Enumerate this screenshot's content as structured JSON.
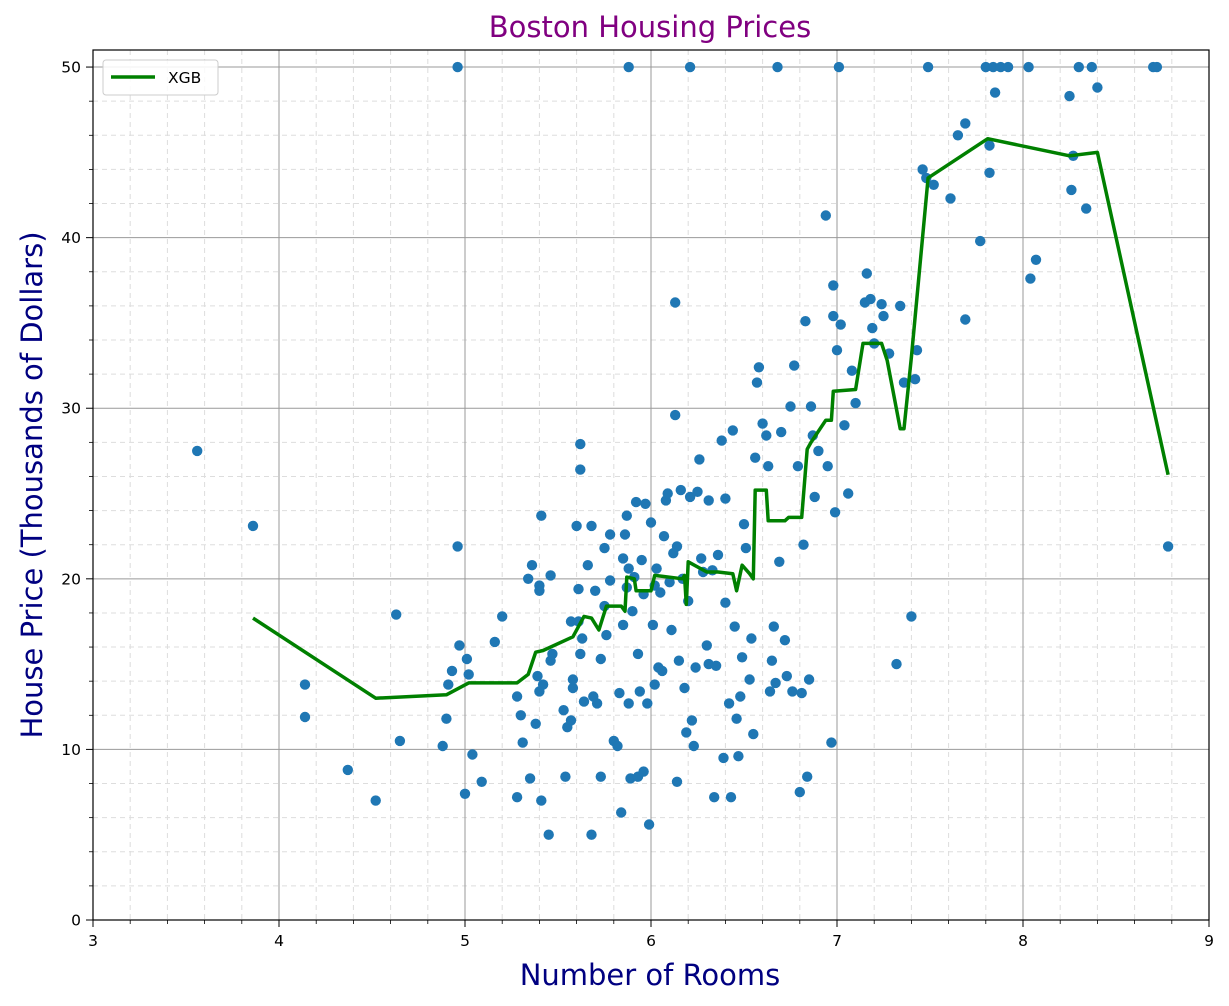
{
  "chart_data": {
    "type": "scatter",
    "title": "Boston Housing Prices",
    "xlabel": "Number of Rooms",
    "ylabel": "House Price (Thousands of Dollars)",
    "xlim": [
      3,
      9
    ],
    "ylim": [
      0,
      51
    ],
    "xticks": [
      3,
      4,
      5,
      6,
      7,
      8,
      9
    ],
    "yticks": [
      0,
      10,
      20,
      30,
      40,
      50
    ],
    "grid": {
      "major": true,
      "minor": true
    },
    "legend_position": "top-left",
    "colors": {
      "points": "#1f77b4",
      "line": "#008000",
      "title": "#800080",
      "axis_label": "#000080"
    },
    "series": [
      {
        "type": "scatter",
        "points": [
          [
            3.56,
            27.5
          ],
          [
            3.86,
            23.1
          ],
          [
            4.14,
            13.8
          ],
          [
            4.14,
            11.9
          ],
          [
            4.37,
            8.8
          ],
          [
            4.52,
            7.0
          ],
          [
            4.63,
            17.9
          ],
          [
            4.65,
            10.5
          ],
          [
            4.88,
            10.2
          ],
          [
            4.9,
            11.8
          ],
          [
            4.91,
            13.8
          ],
          [
            4.93,
            14.6
          ],
          [
            4.96,
            50.0
          ],
          [
            4.96,
            21.9
          ],
          [
            4.97,
            16.1
          ],
          [
            5.0,
            7.4
          ],
          [
            5.01,
            15.3
          ],
          [
            5.02,
            14.4
          ],
          [
            5.04,
            9.7
          ],
          [
            5.09,
            8.1
          ],
          [
            5.16,
            16.3
          ],
          [
            5.2,
            17.8
          ],
          [
            5.28,
            13.1
          ],
          [
            5.28,
            7.2
          ],
          [
            5.3,
            12.0
          ],
          [
            5.31,
            10.4
          ],
          [
            5.34,
            20.0
          ],
          [
            5.35,
            8.3
          ],
          [
            5.36,
            20.8
          ],
          [
            5.38,
            11.5
          ],
          [
            5.39,
            14.3
          ],
          [
            5.4,
            13.4
          ],
          [
            5.4,
            19.6
          ],
          [
            5.4,
            19.3
          ],
          [
            5.41,
            7.0
          ],
          [
            5.41,
            23.7
          ],
          [
            5.42,
            13.8
          ],
          [
            5.45,
            5.0
          ],
          [
            5.46,
            15.2
          ],
          [
            5.46,
            20.2
          ],
          [
            5.47,
            15.6
          ],
          [
            5.53,
            12.3
          ],
          [
            5.54,
            8.4
          ],
          [
            5.55,
            11.3
          ],
          [
            5.57,
            11.7
          ],
          [
            5.57,
            17.5
          ],
          [
            5.58,
            13.6
          ],
          [
            5.58,
            14.1
          ],
          [
            5.6,
            23.1
          ],
          [
            5.61,
            17.5
          ],
          [
            5.61,
            19.4
          ],
          [
            5.62,
            27.9
          ],
          [
            5.62,
            26.4
          ],
          [
            5.62,
            15.6
          ],
          [
            5.63,
            16.5
          ],
          [
            5.64,
            12.8
          ],
          [
            5.66,
            20.8
          ],
          [
            5.68,
            5.0
          ],
          [
            5.68,
            23.1
          ],
          [
            5.69,
            13.1
          ],
          [
            5.7,
            19.3
          ],
          [
            5.71,
            12.7
          ],
          [
            5.73,
            15.3
          ],
          [
            5.73,
            8.4
          ],
          [
            5.75,
            18.4
          ],
          [
            5.75,
            21.8
          ],
          [
            5.76,
            16.7
          ],
          [
            5.78,
            19.9
          ],
          [
            5.78,
            22.6
          ],
          [
            5.8,
            10.5
          ],
          [
            5.82,
            10.2
          ],
          [
            5.83,
            13.3
          ],
          [
            5.84,
            6.3
          ],
          [
            5.85,
            21.2
          ],
          [
            5.85,
            17.3
          ],
          [
            5.86,
            22.6
          ],
          [
            5.87,
            23.7
          ],
          [
            5.87,
            19.5
          ],
          [
            5.88,
            50.0
          ],
          [
            5.88,
            20.6
          ],
          [
            5.88,
            12.7
          ],
          [
            5.89,
            8.3
          ],
          [
            5.9,
            18.1
          ],
          [
            5.91,
            20.1
          ],
          [
            5.92,
            24.5
          ],
          [
            5.93,
            15.6
          ],
          [
            5.93,
            8.4
          ],
          [
            5.94,
            13.4
          ],
          [
            5.95,
            21.1
          ],
          [
            5.96,
            19.1
          ],
          [
            5.96,
            8.7
          ],
          [
            5.97,
            24.4
          ],
          [
            5.98,
            12.7
          ],
          [
            5.99,
            5.6
          ],
          [
            6.0,
            23.3
          ],
          [
            6.01,
            17.3
          ],
          [
            6.02,
            19.6
          ],
          [
            6.02,
            13.8
          ],
          [
            6.03,
            20.6
          ],
          [
            6.04,
            14.8
          ],
          [
            6.05,
            19.2
          ],
          [
            6.06,
            14.6
          ],
          [
            6.07,
            22.5
          ],
          [
            6.08,
            24.6
          ],
          [
            6.09,
            25.0
          ],
          [
            6.1,
            19.8
          ],
          [
            6.11,
            17.0
          ],
          [
            6.12,
            21.5
          ],
          [
            6.13,
            36.2
          ],
          [
            6.13,
            29.6
          ],
          [
            6.14,
            8.1
          ],
          [
            6.14,
            21.9
          ],
          [
            6.15,
            15.2
          ],
          [
            6.16,
            25.2
          ],
          [
            6.17,
            20.0
          ],
          [
            6.18,
            13.6
          ],
          [
            6.19,
            11.0
          ],
          [
            6.2,
            18.7
          ],
          [
            6.21,
            50.0
          ],
          [
            6.21,
            24.8
          ],
          [
            6.22,
            11.7
          ],
          [
            6.23,
            10.2
          ],
          [
            6.24,
            14.8
          ],
          [
            6.25,
            25.1
          ],
          [
            6.26,
            27.0
          ],
          [
            6.27,
            21.2
          ],
          [
            6.28,
            20.4
          ],
          [
            6.3,
            16.1
          ],
          [
            6.31,
            15.0
          ],
          [
            6.31,
            24.6
          ],
          [
            6.33,
            20.5
          ],
          [
            6.34,
            7.2
          ],
          [
            6.35,
            14.9
          ],
          [
            6.36,
            21.4
          ],
          [
            6.38,
            28.1
          ],
          [
            6.39,
            9.5
          ],
          [
            6.4,
            18.6
          ],
          [
            6.4,
            24.7
          ],
          [
            6.42,
            12.7
          ],
          [
            6.43,
            7.2
          ],
          [
            6.44,
            28.7
          ],
          [
            6.45,
            17.2
          ],
          [
            6.46,
            11.8
          ],
          [
            6.47,
            9.6
          ],
          [
            6.48,
            13.1
          ],
          [
            6.49,
            15.4
          ],
          [
            6.5,
            23.2
          ],
          [
            6.51,
            21.8
          ],
          [
            6.53,
            14.1
          ],
          [
            6.54,
            16.5
          ],
          [
            6.55,
            10.9
          ],
          [
            6.56,
            27.1
          ],
          [
            6.57,
            31.5
          ],
          [
            6.58,
            32.4
          ],
          [
            6.6,
            29.1
          ],
          [
            6.62,
            28.4
          ],
          [
            6.63,
            26.6
          ],
          [
            6.64,
            13.4
          ],
          [
            6.65,
            15.2
          ],
          [
            6.66,
            17.2
          ],
          [
            6.67,
            13.9
          ],
          [
            6.68,
            50.0
          ],
          [
            6.69,
            21.0
          ],
          [
            6.7,
            28.6
          ],
          [
            6.72,
            16.4
          ],
          [
            6.73,
            14.3
          ],
          [
            6.75,
            30.1
          ],
          [
            6.76,
            13.4
          ],
          [
            6.77,
            32.5
          ],
          [
            6.79,
            26.6
          ],
          [
            6.8,
            7.5
          ],
          [
            6.81,
            13.3
          ],
          [
            6.82,
            22.0
          ],
          [
            6.83,
            35.1
          ],
          [
            6.84,
            8.4
          ],
          [
            6.85,
            14.1
          ],
          [
            6.86,
            30.1
          ],
          [
            6.87,
            28.4
          ],
          [
            6.88,
            24.8
          ],
          [
            6.9,
            27.5
          ],
          [
            6.94,
            41.3
          ],
          [
            6.95,
            26.6
          ],
          [
            6.97,
            10.4
          ],
          [
            6.98,
            35.4
          ],
          [
            6.98,
            37.2
          ],
          [
            6.99,
            23.9
          ],
          [
            7.0,
            33.4
          ],
          [
            7.01,
            50.0
          ],
          [
            7.02,
            34.9
          ],
          [
            7.04,
            29.0
          ],
          [
            7.06,
            25.0
          ],
          [
            7.08,
            32.2
          ],
          [
            7.1,
            30.3
          ],
          [
            7.15,
            36.2
          ],
          [
            7.16,
            37.9
          ],
          [
            7.18,
            36.4
          ],
          [
            7.19,
            34.7
          ],
          [
            7.2,
            33.8
          ],
          [
            7.24,
            36.1
          ],
          [
            7.25,
            35.4
          ],
          [
            7.28,
            33.2
          ],
          [
            7.32,
            15.0
          ],
          [
            7.34,
            36.0
          ],
          [
            7.36,
            31.5
          ],
          [
            7.4,
            17.8
          ],
          [
            7.42,
            31.7
          ],
          [
            7.43,
            33.4
          ],
          [
            7.46,
            44.0
          ],
          [
            7.48,
            43.5
          ],
          [
            7.49,
            50.0
          ],
          [
            7.52,
            43.1
          ],
          [
            7.61,
            42.3
          ],
          [
            7.65,
            46.0
          ],
          [
            7.69,
            46.7
          ],
          [
            7.69,
            35.2
          ],
          [
            7.77,
            39.8
          ],
          [
            7.8,
            50.0
          ],
          [
            7.82,
            45.4
          ],
          [
            7.82,
            43.8
          ],
          [
            7.84,
            50.0
          ],
          [
            7.85,
            48.5
          ],
          [
            7.88,
            50.0
          ],
          [
            7.92,
            50.0
          ],
          [
            8.03,
            50.0
          ],
          [
            8.04,
            37.6
          ],
          [
            8.07,
            38.7
          ],
          [
            8.25,
            48.3
          ],
          [
            8.26,
            42.8
          ],
          [
            8.27,
            44.8
          ],
          [
            8.3,
            50.0
          ],
          [
            8.34,
            41.7
          ],
          [
            8.37,
            50.0
          ],
          [
            8.4,
            48.8
          ],
          [
            8.7,
            50.0
          ],
          [
            8.72,
            50.0
          ],
          [
            8.78,
            21.9
          ]
        ]
      },
      {
        "type": "line",
        "name": "XGB",
        "points": [
          [
            3.86,
            17.7
          ],
          [
            4.52,
            13.0
          ],
          [
            4.9,
            13.2
          ],
          [
            5.02,
            13.9
          ],
          [
            5.28,
            13.9
          ],
          [
            5.34,
            14.4
          ],
          [
            5.38,
            15.7
          ],
          [
            5.42,
            15.8
          ],
          [
            5.58,
            16.6
          ],
          [
            5.64,
            17.8
          ],
          [
            5.68,
            17.7
          ],
          [
            5.72,
            17.0
          ],
          [
            5.76,
            18.4
          ],
          [
            5.84,
            18.4
          ],
          [
            5.86,
            18.1
          ],
          [
            5.87,
            20.1
          ],
          [
            5.91,
            20.0
          ],
          [
            5.92,
            19.3
          ],
          [
            6.0,
            19.3
          ],
          [
            6.02,
            20.2
          ],
          [
            6.17,
            20.0
          ],
          [
            6.18,
            20.2
          ],
          [
            6.19,
            18.5
          ],
          [
            6.2,
            21.0
          ],
          [
            6.3,
            20.4
          ],
          [
            6.36,
            20.4
          ],
          [
            6.44,
            20.3
          ],
          [
            6.46,
            19.3
          ],
          [
            6.49,
            20.8
          ],
          [
            6.53,
            20.3
          ],
          [
            6.55,
            20.0
          ],
          [
            6.56,
            25.2
          ],
          [
            6.62,
            25.2
          ],
          [
            6.63,
            23.4
          ],
          [
            6.72,
            23.4
          ],
          [
            6.74,
            23.6
          ],
          [
            6.81,
            23.6
          ],
          [
            6.84,
            27.6
          ],
          [
            6.86,
            28.0
          ],
          [
            6.94,
            29.3
          ],
          [
            6.97,
            29.3
          ],
          [
            6.98,
            31.0
          ],
          [
            7.1,
            31.1
          ],
          [
            7.14,
            33.8
          ],
          [
            7.24,
            33.8
          ],
          [
            7.27,
            32.8
          ],
          [
            7.34,
            28.8
          ],
          [
            7.36,
            28.8
          ],
          [
            7.4,
            33.0
          ],
          [
            7.49,
            43.5
          ],
          [
            7.81,
            45.8
          ],
          [
            8.25,
            44.8
          ],
          [
            8.4,
            45.0
          ],
          [
            8.78,
            26.1
          ]
        ]
      }
    ]
  }
}
